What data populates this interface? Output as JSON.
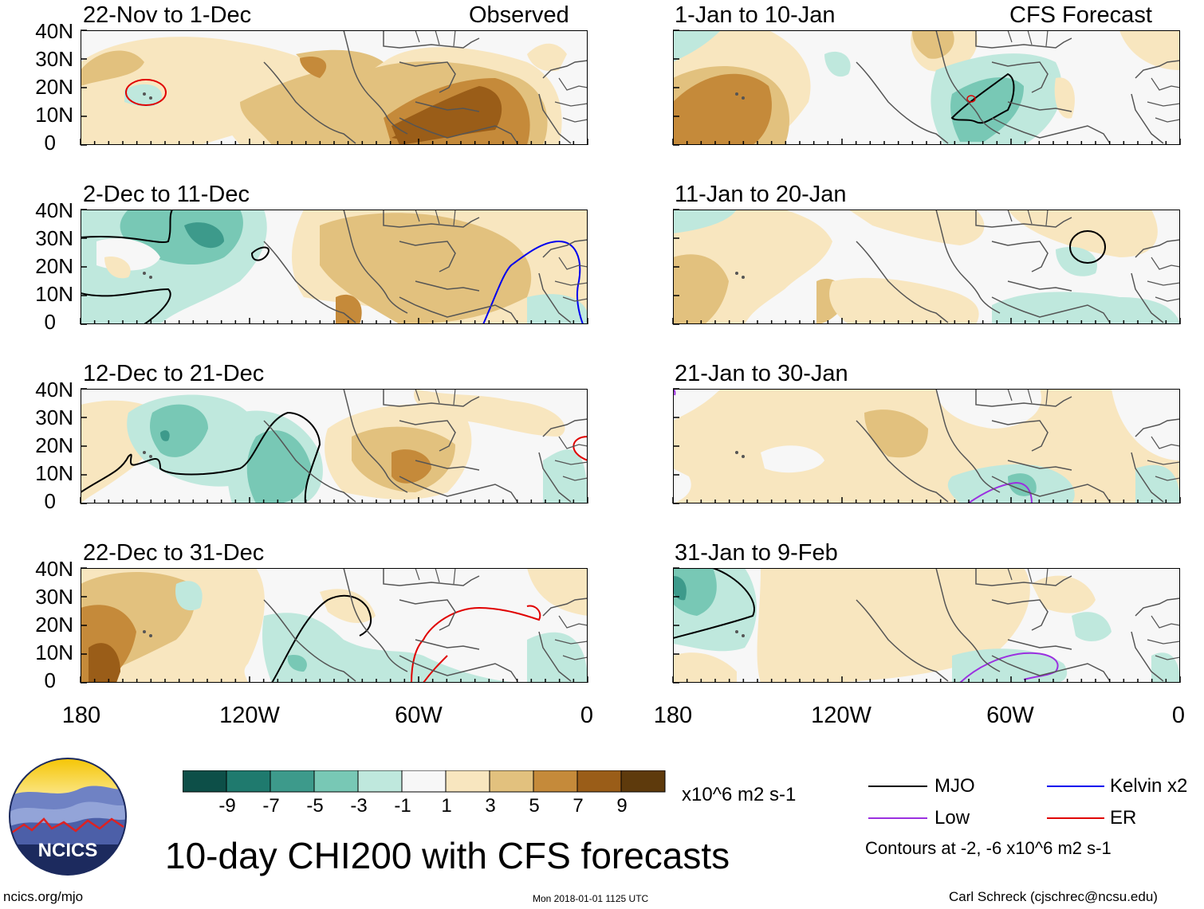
{
  "title": "10-day CHI200 with CFS forecasts",
  "observed_label": "Observed",
  "forecast_label": "CFS Forecast",
  "panels_left": [
    {
      "period": "22-Nov to 1-Dec"
    },
    {
      "period": "2-Dec to 11-Dec"
    },
    {
      "period": "12-Dec to 21-Dec"
    },
    {
      "period": "22-Dec to 31-Dec"
    }
  ],
  "panels_right": [
    {
      "period": "1-Jan to 10-Jan"
    },
    {
      "period": "11-Jan to 20-Jan"
    },
    {
      "period": "21-Jan to 30-Jan"
    },
    {
      "period": "31-Jan to 9-Feb"
    }
  ],
  "y_ticks": [
    "40N",
    "30N",
    "20N",
    "10N",
    "0"
  ],
  "x_ticks": [
    "180",
    "120W",
    "60W",
    "0"
  ],
  "colorbar": {
    "labels": [
      "-9",
      "-7",
      "-5",
      "-3",
      "-1",
      "1",
      "3",
      "5",
      "7",
      "9"
    ],
    "colors": [
      "#0d4f48",
      "#1f7a6e",
      "#3d9a8b",
      "#78c8b5",
      "#bfe8dd",
      "#f7f7f7",
      "#f8e6bf",
      "#e2c17e",
      "#c58a3a",
      "#9a5d18",
      "#5e3a0c"
    ],
    "units": "x10^6 m2 s-1"
  },
  "legend": {
    "mjo": "MJO",
    "kelvin": "Kelvin x2",
    "low": "Low",
    "er": "ER",
    "contours": "Contours at -2, -6 x10^6 m2 s-1",
    "colors": {
      "mjo": "#000000",
      "kelvin": "#0000ee",
      "low": "#9b30e0",
      "er": "#e00000"
    }
  },
  "logo_text": "NCICS",
  "footer": {
    "url": "ncics.org/mjo",
    "timestamp": "Mon 2018-01-01 1125 UTC",
    "credit": "Carl Schreck (cjschrec@ncsu.edu)"
  }
}
